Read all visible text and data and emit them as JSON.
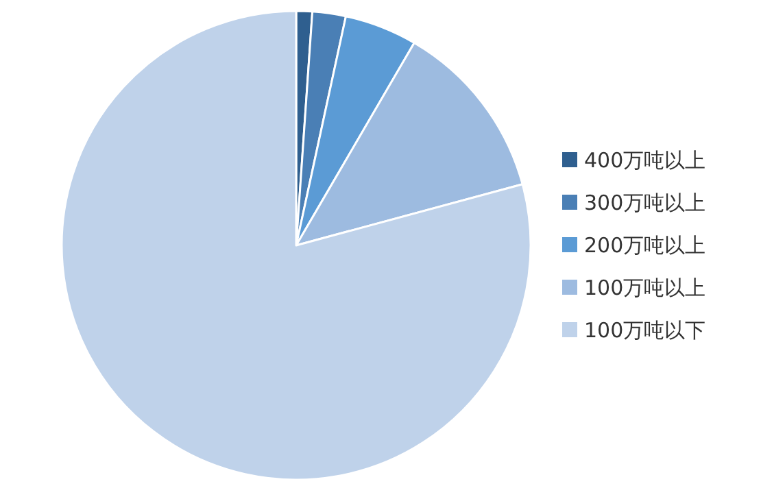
{
  "chart_data": {
    "type": "pie",
    "categories": [
      "400万吨以上",
      "300万吨以上",
      "200万吨以上",
      "100万吨以上",
      "100万吨以下"
    ],
    "values": [
      1.1,
      2.3,
      5.0,
      12.4,
      79.2
    ],
    "colors": [
      "#2f5f8f",
      "#4a7fb5",
      "#5b9bd5",
      "#9dbbe0",
      "#bfd2ea"
    ],
    "legend": "right"
  }
}
